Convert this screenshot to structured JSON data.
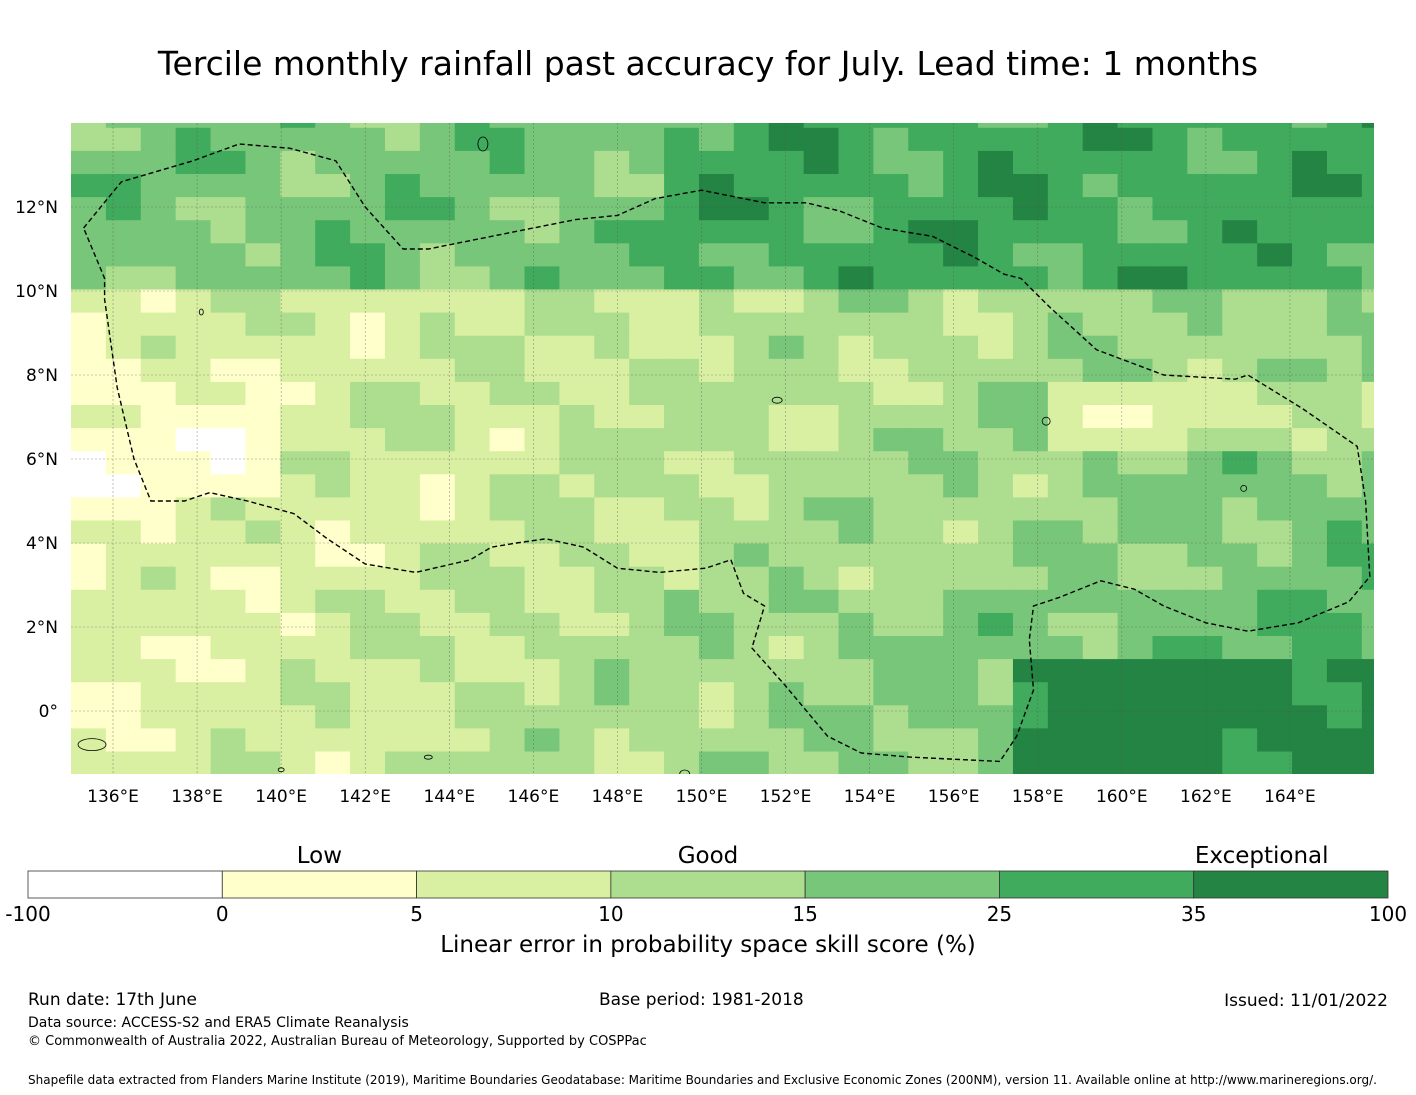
{
  "title": "Tercile monthly rainfall past accuracy for July. Lead time: 1 months",
  "map": {
    "lon_range": [
      135,
      166
    ],
    "lat_range": [
      -1.5,
      14
    ],
    "lon_ticks": [
      "136°E",
      "138°E",
      "140°E",
      "142°E",
      "144°E",
      "146°E",
      "148°E",
      "150°E",
      "152°E",
      "154°E",
      "156°E",
      "158°E",
      "160°E",
      "162°E",
      "164°E"
    ],
    "lat_ticks": [
      "12°N",
      "10°N",
      "8°N",
      "6°N",
      "4°N",
      "2°N",
      "0°"
    ],
    "lon_tick_values": [
      136,
      138,
      140,
      142,
      144,
      146,
      148,
      150,
      152,
      154,
      156,
      158,
      160,
      162,
      164
    ],
    "lat_tick_values": [
      12,
      10,
      8,
      6,
      4,
      2,
      0
    ],
    "grid": true,
    "boundary_style": "dashed"
  },
  "colorbar": {
    "categories": [
      {
        "label": "Low",
        "at_tick": 1.5
      },
      {
        "label": "Good",
        "at_tick": 3.5
      },
      {
        "label": "Exceptional",
        "at_tick": 6.35
      }
    ],
    "ticks": [
      "-100",
      "0",
      "5",
      "10",
      "15",
      "25",
      "35",
      "100"
    ],
    "colors": [
      "#ffffff",
      "#ffffcc",
      "#d9f0a3",
      "#addd8e",
      "#78c679",
      "#41ab5d",
      "#238443"
    ],
    "label": "Linear error in probability space skill score (%)"
  },
  "footer": {
    "run_date": "Run date: 17th June",
    "base_period": "Base period: 1981-2018",
    "issued": "Issued: 11/01/2022",
    "data_source": "Data source: ACCESS-S2 and ERA5 Climate Reanalysis",
    "copyright": "© Commonwealth of Australia 2022, Australian Bureau of Meteorology, Supported by COSPPac",
    "shapefile": "Shapefile data extracted from Flanders Marine Institute (2019), Maritime Boundaries Geodatabase: Maritime Boundaries and Exclusive Economic Zones (200NM), version 11. Available online at http://www.marineregions.org/."
  }
}
